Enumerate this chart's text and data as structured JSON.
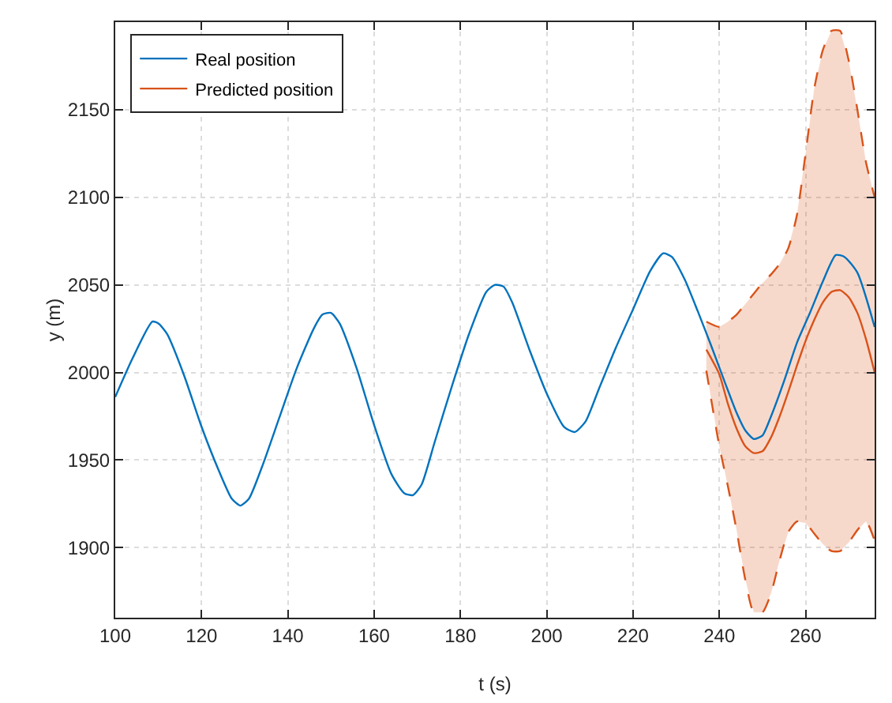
{
  "chart_data": {
    "type": "line",
    "xlabel": "t (s)",
    "ylabel": "y (m)",
    "xlim": [
      100,
      276
    ],
    "ylim": [
      1860,
      2200
    ],
    "xticks": [
      100,
      120,
      140,
      160,
      180,
      200,
      220,
      240,
      260
    ],
    "yticks": [
      1900,
      1950,
      2000,
      2050,
      2100,
      2150
    ],
    "grid": true,
    "legend": "top left",
    "line_style": "solid",
    "marker": "none",
    "series": [
      {
        "name": "Real position",
        "color": "#0072bd",
        "x": [
          100,
          104,
          108.6,
          110,
          112,
          116,
          120,
          124,
          127,
          129,
          131,
          134,
          138,
          142,
          146,
          148,
          150,
          152,
          156,
          160,
          164,
          167,
          169,
          171,
          174,
          178,
          182,
          186,
          188,
          190,
          192,
          196,
          200,
          204,
          206.5,
          209,
          212,
          216,
          220,
          224,
          227,
          229,
          232,
          235,
          238,
          241.5,
          244,
          246,
          248,
          250,
          252,
          255,
          258,
          261,
          264,
          267,
          269,
          272,
          276
        ],
        "values": [
          1986,
          2008,
          2029,
          2028,
          2022,
          1998,
          1969,
          1944,
          1928,
          1924,
          1928,
          1946,
          1974,
          2002,
          2025,
          2033,
          2034,
          2028,
          2002,
          1970,
          1942,
          1931,
          1930,
          1936,
          1960,
          1992,
          2022,
          2046,
          2050,
          2049,
          2040,
          2013,
          1988,
          1969,
          1966,
          1972,
          1990,
          2014,
          2036,
          2058,
          2068,
          2066,
          2053,
          2035,
          2016,
          1993,
          1977,
          1967,
          1962,
          1964,
          1975,
          1995,
          2017,
          2034,
          2052,
          2067,
          2066,
          2057,
          2026
        ]
      },
      {
        "name": "Predicted position",
        "color": "#d95319",
        "x": [
          237,
          240,
          242,
          244,
          246,
          248,
          250,
          252,
          254,
          256,
          258,
          260,
          262,
          264,
          266,
          268,
          270,
          272,
          274,
          276
        ],
        "values": [
          2013,
          1999,
          1982,
          1968,
          1958,
          1954,
          1955,
          1963,
          1975,
          1989,
          2004,
          2018,
          2030,
          2040,
          2046,
          2047,
          2043,
          2034,
          2019,
          2000
        ],
        "lower": [
          2001,
          1958,
          1935,
          1910,
          1882,
          1863,
          1863,
          1874,
          1893,
          1909,
          1915,
          1914,
          1908,
          1902,
          1898,
          1898,
          1903,
          1910,
          1915,
          1904
        ],
        "upper": [
          2029,
          2026,
          2029,
          2033,
          2039,
          2045,
          2051,
          2056,
          2062,
          2071,
          2090,
          2125,
          2162,
          2184,
          2195,
          2195,
          2178,
          2150,
          2120,
          2100
        ]
      },
      {
        "color": "#d95319",
        "line_style": "dashed",
        "x": [
          237,
          240,
          242,
          244,
          246,
          248,
          250,
          252,
          254,
          256,
          258,
          260,
          262,
          264,
          266,
          268,
          270,
          272,
          274,
          276
        ],
        "values": [
          2001,
          1958,
          1935,
          1910,
          1882,
          1863,
          1863,
          1874,
          1893,
          1909,
          1915,
          1914,
          1908,
          1902,
          1898,
          1898,
          1903,
          1910,
          1915,
          1904
        ]
      },
      {
        "color": "#d95319",
        "line_style": "dashed",
        "x": [
          237,
          240,
          242,
          244,
          246,
          248,
          250,
          252,
          254,
          256,
          258,
          260,
          262,
          264,
          266,
          268,
          270,
          272,
          274,
          276
        ],
        "values": [
          2029,
          2026,
          2029,
          2033,
          2039,
          2045,
          2051,
          2056,
          2062,
          2071,
          2090,
          2125,
          2162,
          2184,
          2195,
          2195,
          2178,
          2150,
          2120,
          2100
        ]
      }
    ]
  }
}
